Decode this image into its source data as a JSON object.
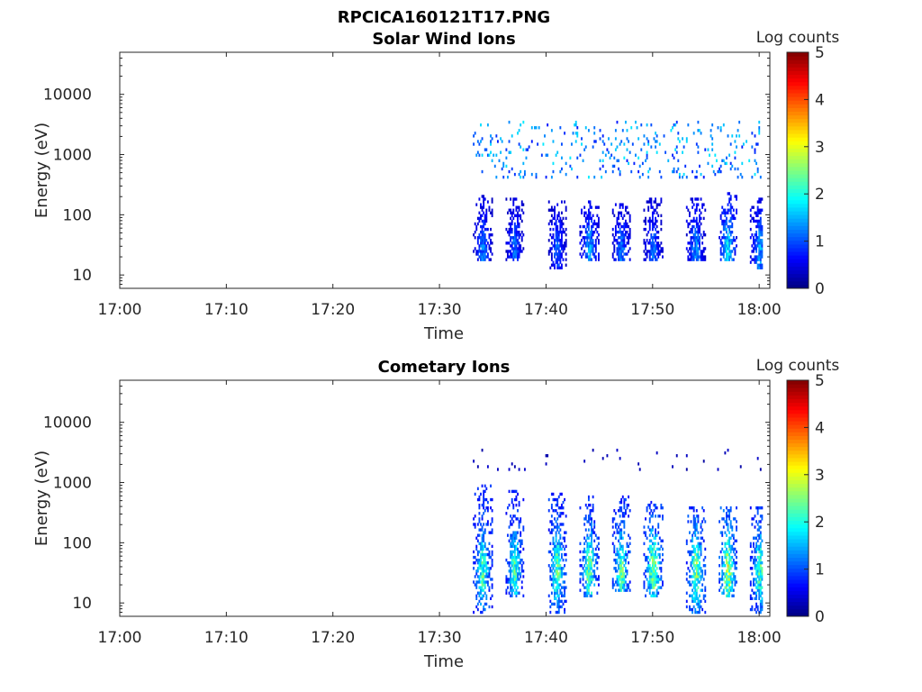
{
  "figure": {
    "filename": "RPCICA160121T17.PNG"
  },
  "chart_data": [
    {
      "type": "heatmap",
      "title": "Solar Wind Ions",
      "xlabel": "Time",
      "ylabel": "Energy (eV)",
      "y_scale": "log",
      "ylim": [
        6,
        50000
      ],
      "xlim": [
        "17:00",
        "18:01"
      ],
      "x_ticks": [
        "17:00",
        "17:10",
        "17:20",
        "17:30",
        "17:40",
        "17:50",
        "18:00"
      ],
      "y_ticks": [
        "10",
        "100",
        "1000",
        "10000"
      ],
      "colorbar": {
        "label": "Log counts",
        "min": 0,
        "max": 5,
        "ticks": [
          "0",
          "1",
          "2",
          "3",
          "4",
          "5"
        ],
        "colormap": "jet"
      },
      "data_start": "17:33",
      "bursts": [
        {
          "t": "17:34",
          "e_lo": 17,
          "e_hi": 220,
          "peak": 1.4
        },
        {
          "t": "17:37",
          "e_lo": 17,
          "e_hi": 200,
          "peak": 1.3
        },
        {
          "t": "17:41",
          "e_lo": 12,
          "e_hi": 180,
          "peak": 1.2
        },
        {
          "t": "17:44",
          "e_lo": 17,
          "e_hi": 200,
          "peak": 1.6
        },
        {
          "t": "17:47",
          "e_lo": 17,
          "e_hi": 150,
          "peak": 1.4
        },
        {
          "t": "17:50",
          "e_lo": 17,
          "e_hi": 200,
          "peak": 1.3
        },
        {
          "t": "17:54",
          "e_lo": 17,
          "e_hi": 200,
          "peak": 1.5
        },
        {
          "t": "17:57",
          "e_lo": 17,
          "e_hi": 250,
          "peak": 2.0
        },
        {
          "t": "18:00",
          "e_lo": 12,
          "e_hi": 200,
          "peak": 1.6
        }
      ],
      "high_energy_band": {
        "e_lo": 400,
        "e_hi": 3500,
        "peak": 1.8
      }
    },
    {
      "type": "heatmap",
      "title": "Cometary Ions",
      "xlabel": "Time",
      "ylabel": "Energy (eV)",
      "y_scale": "log",
      "ylim": [
        6,
        50000
      ],
      "xlim": [
        "17:00",
        "18:01"
      ],
      "x_ticks": [
        "17:00",
        "17:10",
        "17:20",
        "17:30",
        "17:40",
        "17:50",
        "18:00"
      ],
      "y_ticks": [
        "10",
        "100",
        "1000",
        "10000"
      ],
      "colorbar": {
        "label": "Log counts",
        "min": 0,
        "max": 5,
        "ticks": [
          "0",
          "1",
          "2",
          "3",
          "4",
          "5"
        ],
        "colormap": "jet"
      },
      "data_start": "17:33",
      "bursts": [
        {
          "t": "17:34",
          "e_lo": 7,
          "e_hi": 900,
          "peak": 2.6
        },
        {
          "t": "17:37",
          "e_lo": 12,
          "e_hi": 800,
          "peak": 2.5
        },
        {
          "t": "17:41",
          "e_lo": 7,
          "e_hi": 700,
          "peak": 2.7
        },
        {
          "t": "17:44",
          "e_lo": 12,
          "e_hi": 600,
          "peak": 2.8
        },
        {
          "t": "17:47",
          "e_lo": 15,
          "e_hi": 600,
          "peak": 2.7
        },
        {
          "t": "17:50",
          "e_lo": 12,
          "e_hi": 500,
          "peak": 3.0
        },
        {
          "t": "17:54",
          "e_lo": 7,
          "e_hi": 400,
          "peak": 2.9
        },
        {
          "t": "17:57",
          "e_lo": 12,
          "e_hi": 400,
          "peak": 3.2
        },
        {
          "t": "18:00",
          "e_lo": 7,
          "e_hi": 400,
          "peak": 2.6
        }
      ],
      "high_energy_band": {
        "e_lo": 1500,
        "e_hi": 3500,
        "peak": 0.4
      }
    }
  ]
}
